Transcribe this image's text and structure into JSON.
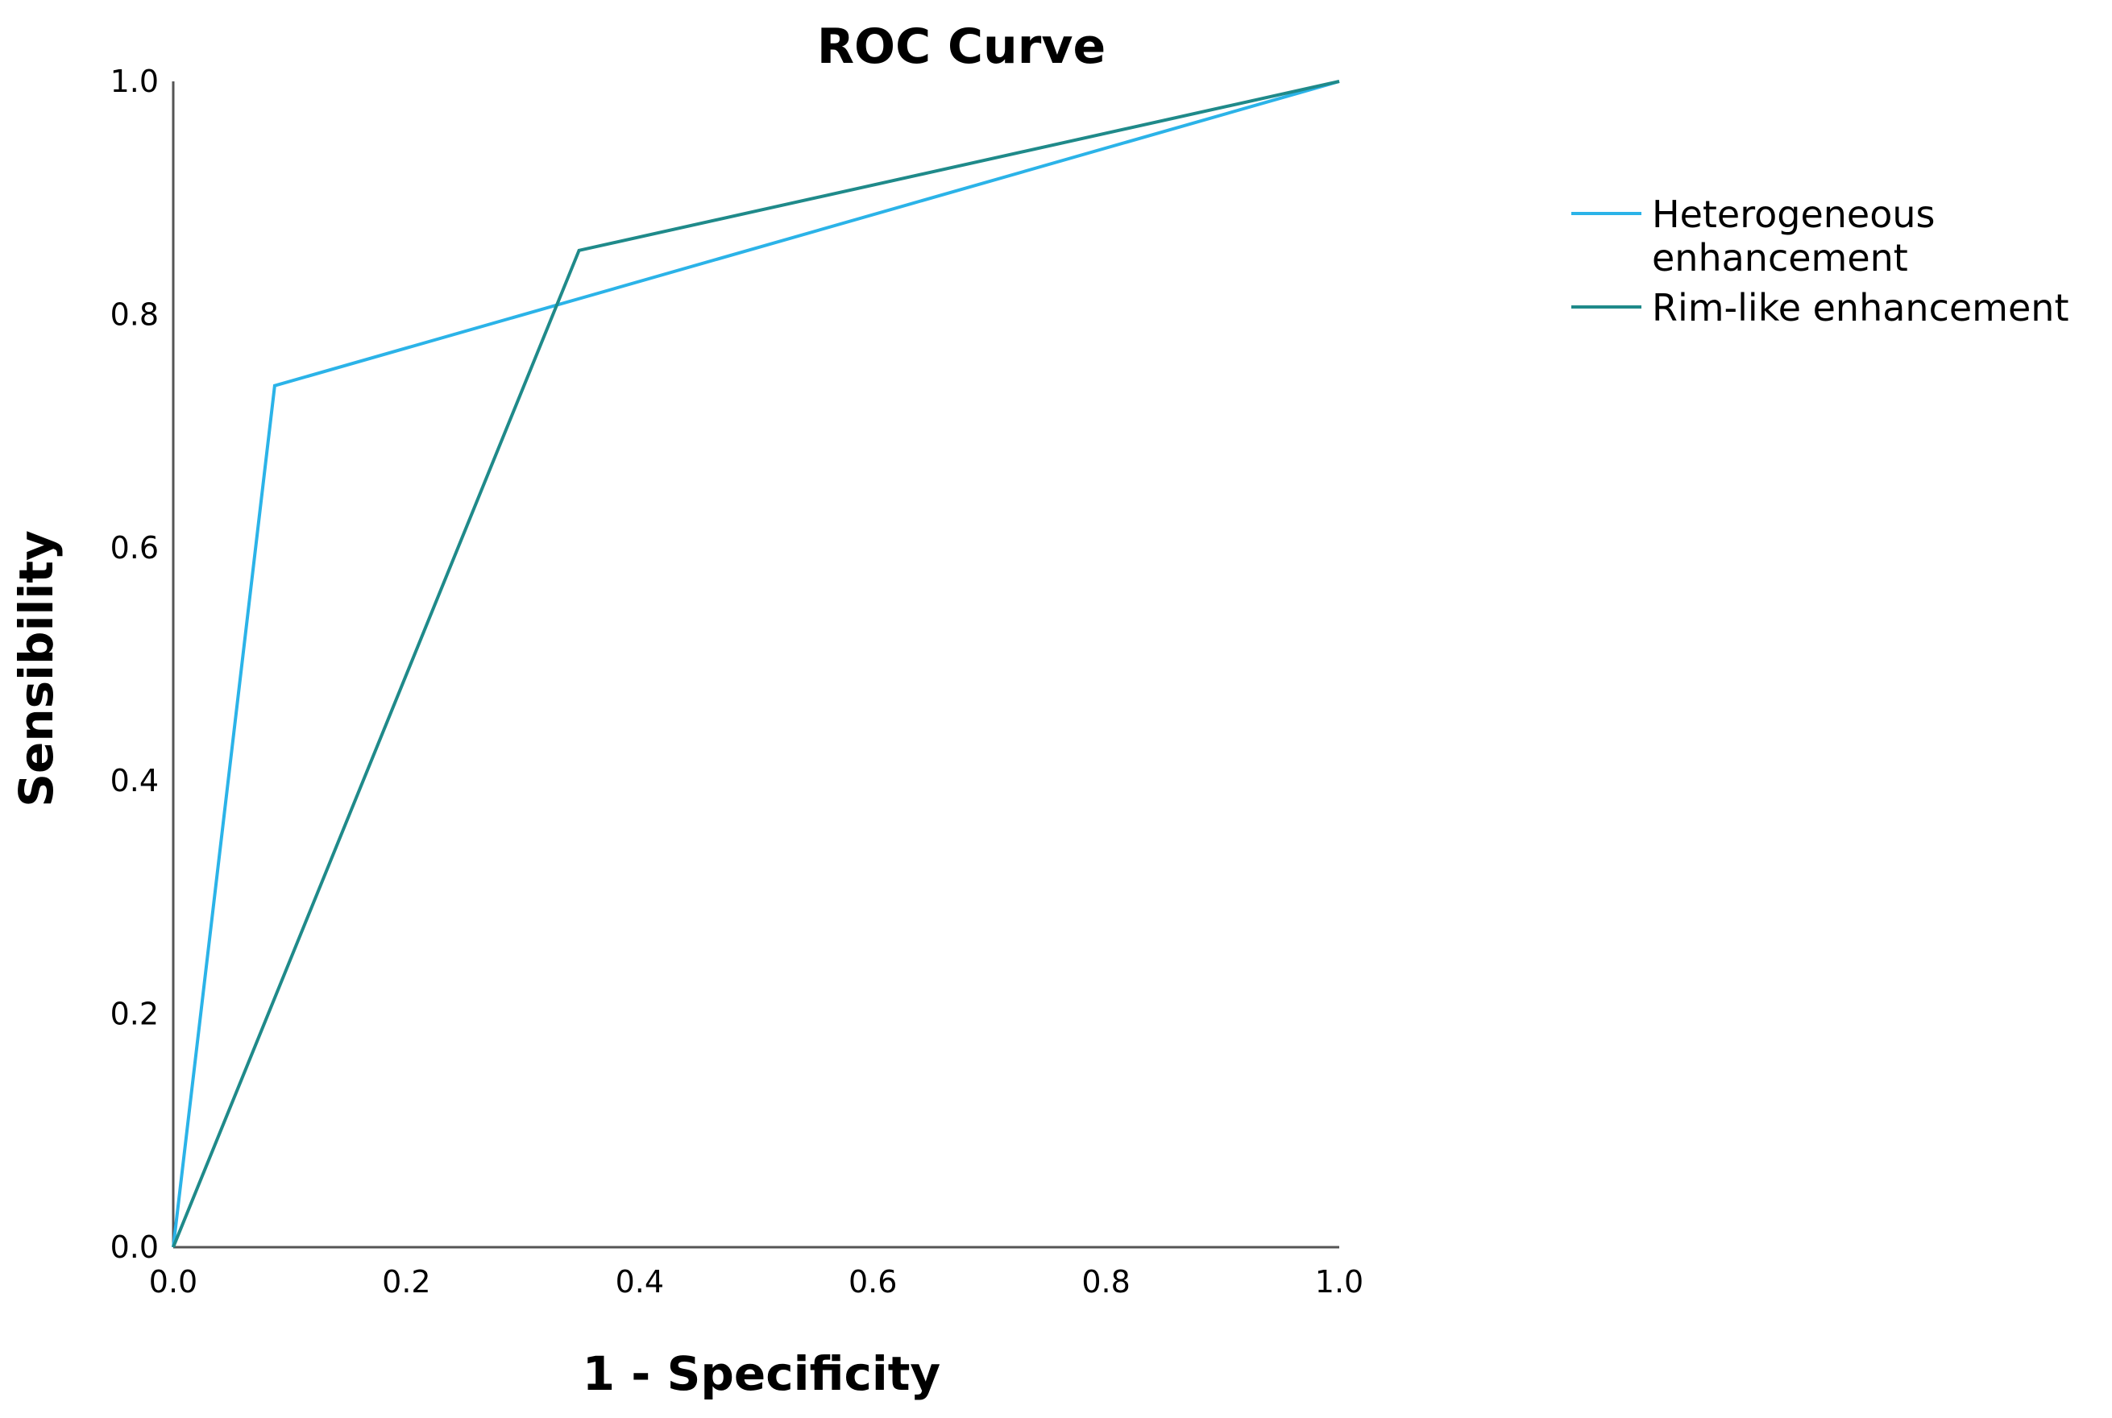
{
  "chart_data": {
    "type": "line",
    "title": "ROC Curve",
    "xlabel": "1 - Specificity",
    "ylabel": "Sensibility",
    "xlim": [
      0,
      1
    ],
    "ylim": [
      0,
      1
    ],
    "x_ticks": [
      "0.0",
      "0.2",
      "0.4",
      "0.6",
      "0.8",
      "1.0"
    ],
    "y_ticks": [
      "0.0",
      "0.2",
      "0.4",
      "0.6",
      "0.8",
      "1.0"
    ],
    "grid": false,
    "legend_position": "top-right, outside plot",
    "series": [
      {
        "name": "Heterogeneous enhancement",
        "legend_lines": [
          "Heterogeneous",
          "enhancement"
        ],
        "color": "#2BB3E8",
        "points": [
          [
            0.0,
            0.0
          ],
          [
            0.087,
            0.739
          ],
          [
            1.0,
            1.0
          ]
        ]
      },
      {
        "name": "Rim-like enhancement",
        "legend_lines": [
          "Rim-like enhancement"
        ],
        "color": "#1F8A8A",
        "points": [
          [
            0.0,
            0.0
          ],
          [
            0.348,
            0.855
          ],
          [
            1.0,
            1.0
          ]
        ]
      }
    ]
  }
}
